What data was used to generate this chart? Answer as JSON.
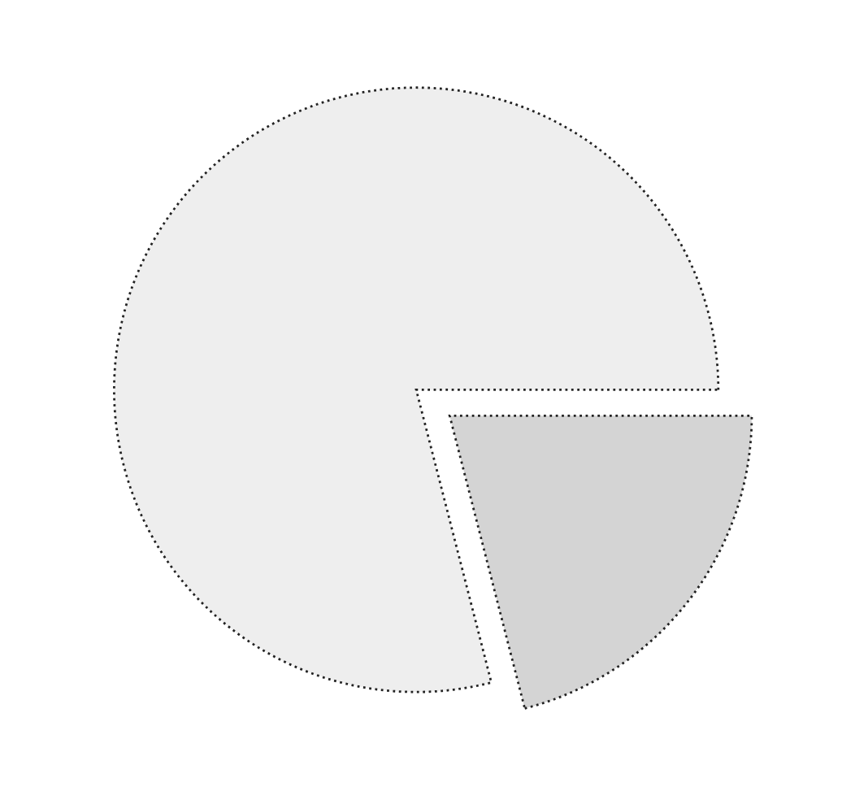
{
  "chart_data": {
    "type": "pie",
    "categories": [
      null,
      null
    ],
    "values": [
      79,
      21
    ],
    "colors": [
      "#eeeeee",
      "#d4d4d4"
    ]
  }
}
